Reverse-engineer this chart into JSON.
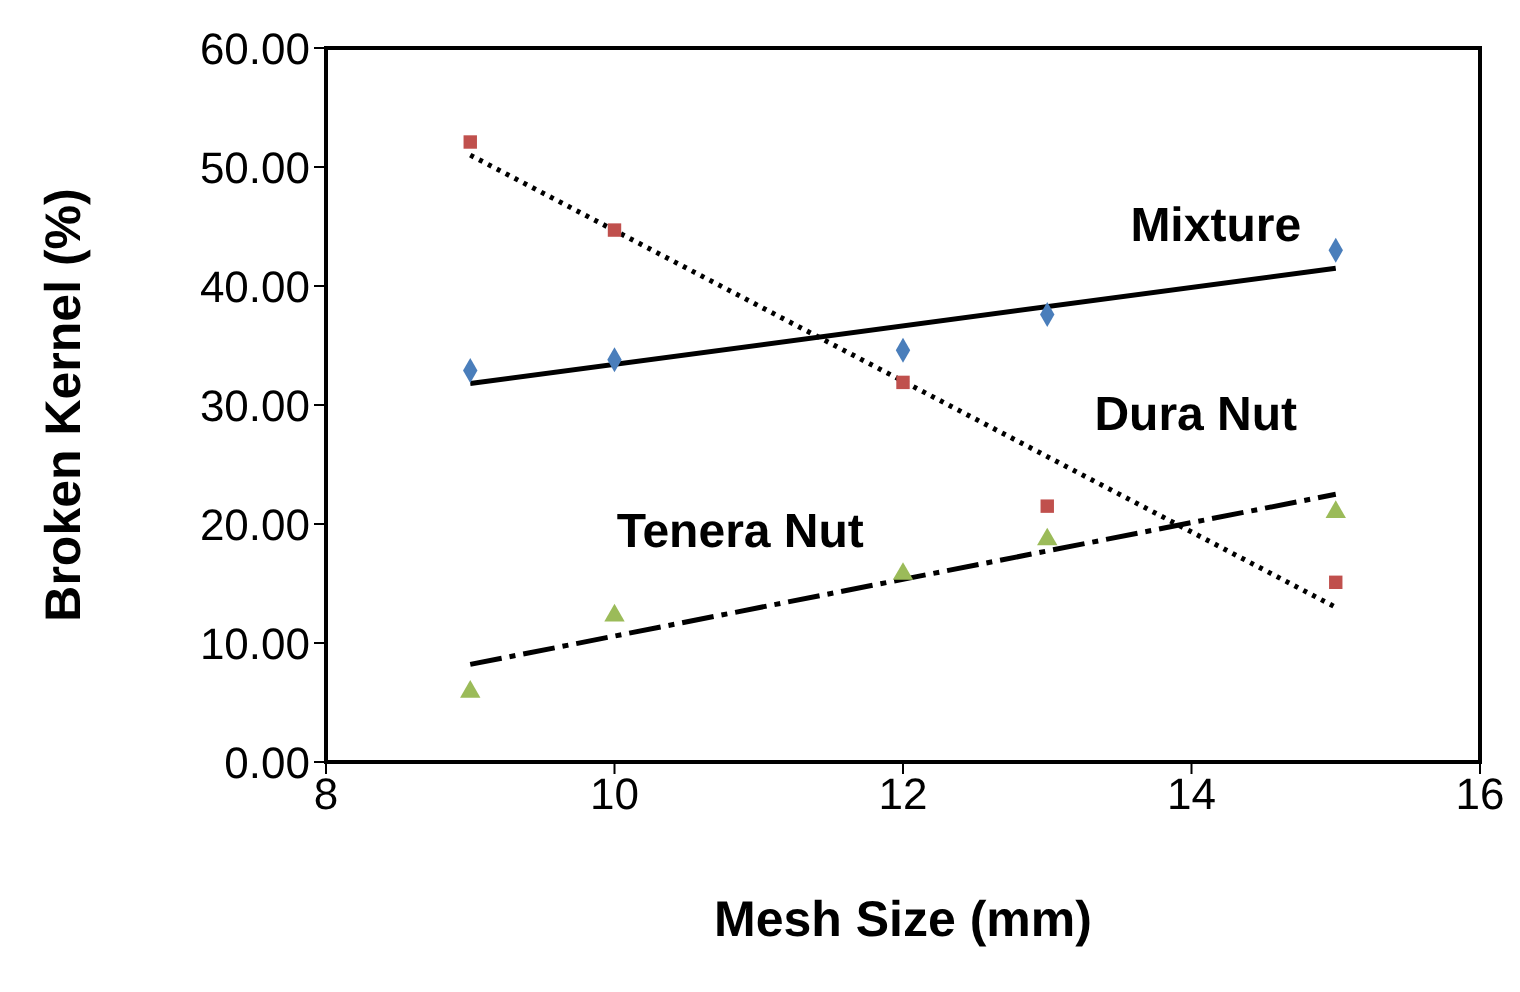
{
  "chart_data": {
    "type": "scatter",
    "xlabel": "Mesh Size (mm)",
    "ylabel": "Broken Kernel (%)",
    "xlim": [
      8,
      16
    ],
    "xticks": [
      8,
      10,
      12,
      14,
      16
    ],
    "ylim": [
      0,
      60
    ],
    "yticks": [
      {
        "value": 0,
        "label": "0.00"
      },
      {
        "value": 10,
        "label": "10.00"
      },
      {
        "value": 20,
        "label": "20.00"
      },
      {
        "value": 30,
        "label": "30.00"
      },
      {
        "value": 40,
        "label": "40.00"
      },
      {
        "value": 50,
        "label": "50.00"
      },
      {
        "value": 60,
        "label": "60.00"
      }
    ],
    "grid": false,
    "legend": false,
    "series": [
      {
        "color": "#4a7ebb",
        "marker": "diamond",
        "x": [
          9,
          10,
          12,
          13,
          15
        ],
        "values": [
          32.9,
          33.8,
          34.6,
          37.6,
          43.0
        ]
      },
      {
        "color": "#c0504d",
        "marker": "square",
        "x": [
          9,
          10,
          12,
          13,
          15
        ],
        "values": [
          52.1,
          44.7,
          31.9,
          21.5,
          15.1
        ]
      },
      {
        "color": "#9bbb59",
        "marker": "triangle",
        "x": [
          9,
          10,
          12,
          13,
          15
        ],
        "values": [
          5.9,
          12.3,
          15.8,
          18.7,
          21.0
        ]
      },
      {
        "type": "line",
        "name": "Mixture",
        "color": "#000000",
        "line_style": "solid",
        "marker": "none",
        "x": [
          9,
          15
        ],
        "values": [
          31.8,
          41.5
        ]
      },
      {
        "type": "line",
        "name": "Dura Nut",
        "color": "#000000",
        "line_style": "dotted",
        "marker": "none",
        "x": [
          9,
          15
        ],
        "values": [
          51,
          13
        ]
      },
      {
        "type": "line",
        "name": "Tenera Nut",
        "color": "#000000",
        "line_style": "dashed",
        "marker": "none",
        "x": [
          9,
          15
        ],
        "values": [
          8.2,
          22.5
        ]
      }
    ]
  }
}
